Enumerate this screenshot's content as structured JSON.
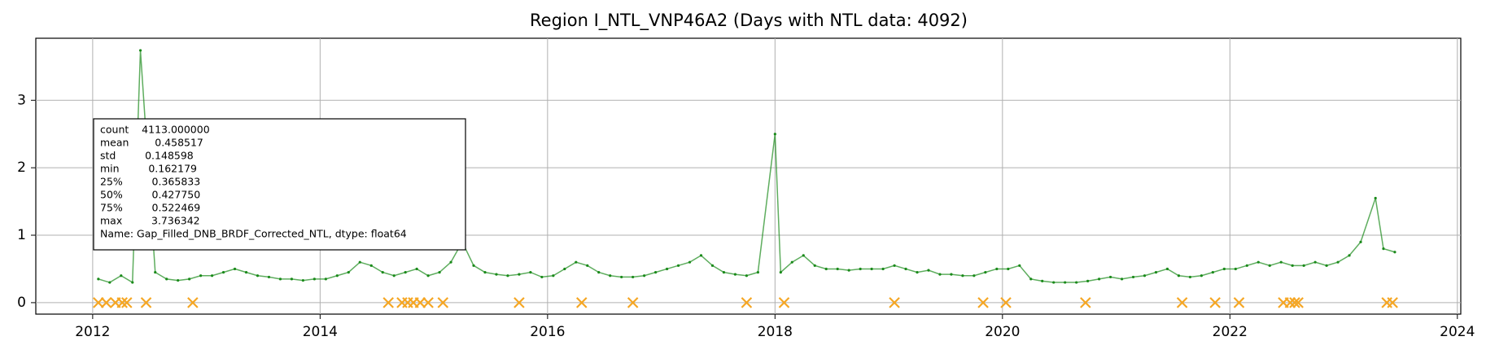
{
  "chart_data": {
    "type": "line",
    "title": "Region I_NTL_VNP46A2 (Days with NTL data: 4092)",
    "xlim": [
      2011.5,
      2024.03
    ],
    "ylim": [
      -0.17,
      3.92
    ],
    "xticks": [
      2012,
      2014,
      2016,
      2018,
      2020,
      2022,
      2024
    ],
    "yticks": [
      0,
      1,
      2,
      3
    ],
    "grid": true,
    "annotation": [
      "count    4113.000000",
      "mean        0.458517",
      "std         0.148598",
      "min         0.162179",
      "25%         0.365833",
      "50%         0.427750",
      "75%         0.522469",
      "max         3.736342",
      "Name: Gap_Filled_DNB_BRDF_Corrected_NTL, dtype: float64"
    ],
    "series": [
      {
        "color": "#1a8a1a",
        "marker": "dot",
        "x": [
          2012.05,
          2012.15,
          2012.25,
          2012.35,
          2012.42,
          2012.55,
          2012.65,
          2012.75,
          2012.85,
          2012.95,
          2013.05,
          2013.15,
          2013.25,
          2013.35,
          2013.45,
          2013.55,
          2013.65,
          2013.75,
          2013.85,
          2013.95,
          2014.05,
          2014.15,
          2014.25,
          2014.35,
          2014.45,
          2014.55,
          2014.65,
          2014.75,
          2014.85,
          2014.95,
          2015.05,
          2015.15,
          2015.25,
          2015.35,
          2015.45,
          2015.55,
          2015.65,
          2015.75,
          2015.85,
          2015.95,
          2016.05,
          2016.15,
          2016.25,
          2016.35,
          2016.45,
          2016.55,
          2016.65,
          2016.75,
          2016.85,
          2016.95,
          2017.05,
          2017.15,
          2017.25,
          2017.35,
          2017.45,
          2017.55,
          2017.65,
          2017.75,
          2017.85,
          2018.0,
          2018.05,
          2018.15,
          2018.25,
          2018.35,
          2018.45,
          2018.55,
          2018.65,
          2018.75,
          2018.85,
          2018.95,
          2019.05,
          2019.15,
          2019.25,
          2019.35,
          2019.45,
          2019.55,
          2019.65,
          2019.75,
          2019.85,
          2019.95,
          2020.05,
          2020.15,
          2020.25,
          2020.35,
          2020.45,
          2020.55,
          2020.65,
          2020.75,
          2020.85,
          2020.95,
          2021.05,
          2021.15,
          2021.25,
          2021.35,
          2021.45,
          2021.55,
          2021.65,
          2021.75,
          2021.85,
          2021.95,
          2022.05,
          2022.15,
          2022.25,
          2022.35,
          2022.45,
          2022.55,
          2022.65,
          2022.75,
          2022.85,
          2022.95,
          2023.05,
          2023.15,
          2023.28,
          2023.35,
          2023.45
        ],
        "values": [
          0.35,
          0.3,
          0.4,
          0.3,
          3.74,
          0.45,
          0.35,
          0.33,
          0.35,
          0.4,
          0.4,
          0.45,
          0.5,
          0.45,
          0.4,
          0.38,
          0.35,
          0.35,
          0.33,
          0.35,
          0.35,
          0.4,
          0.45,
          0.6,
          0.55,
          0.45,
          0.4,
          0.45,
          0.5,
          0.4,
          0.45,
          0.6,
          0.9,
          0.55,
          0.45,
          0.42,
          0.4,
          0.42,
          0.45,
          0.38,
          0.4,
          0.5,
          0.6,
          0.55,
          0.45,
          0.4,
          0.38,
          0.38,
          0.4,
          0.45,
          0.5,
          0.55,
          0.6,
          0.7,
          0.55,
          0.45,
          0.42,
          0.4,
          0.45,
          2.5,
          0.45,
          0.6,
          0.7,
          0.55,
          0.5,
          0.5,
          0.48,
          0.5,
          0.5,
          0.5,
          0.55,
          0.5,
          0.45,
          0.48,
          0.42,
          0.42,
          0.4,
          0.4,
          0.45,
          0.5,
          0.5,
          0.55,
          0.35,
          0.32,
          0.3,
          0.3,
          0.3,
          0.32,
          0.35,
          0.38,
          0.35,
          0.38,
          0.4,
          0.45,
          0.5,
          0.4,
          0.38,
          0.4,
          0.45,
          0.5,
          0.5,
          0.55,
          0.6,
          0.55,
          0.6,
          0.55,
          0.55,
          0.6,
          0.55,
          0.6,
          0.7,
          0.9,
          1.55,
          0.8,
          0.75
        ]
      },
      {
        "color": "#f5a623",
        "marker": "x",
        "x": [
          2012.05,
          2012.12,
          2012.2,
          2012.26,
          2012.3,
          2012.47,
          2012.88,
          2014.6,
          2014.72,
          2014.77,
          2014.82,
          2014.88,
          2014.95,
          2015.08,
          2015.75,
          2016.3,
          2016.75,
          2017.75,
          2018.08,
          2019.05,
          2019.83,
          2020.03,
          2020.73,
          2021.58,
          2021.87,
          2022.08,
          2022.47,
          2022.53,
          2022.57,
          2022.6,
          2023.38,
          2023.43
        ],
        "values": [
          0,
          0,
          0,
          0,
          0,
          0,
          0,
          0,
          0,
          0,
          0,
          0,
          0,
          0,
          0,
          0,
          0,
          0,
          0,
          0,
          0,
          0,
          0,
          0,
          0,
          0,
          0,
          0,
          0,
          0,
          0,
          0
        ]
      }
    ]
  }
}
